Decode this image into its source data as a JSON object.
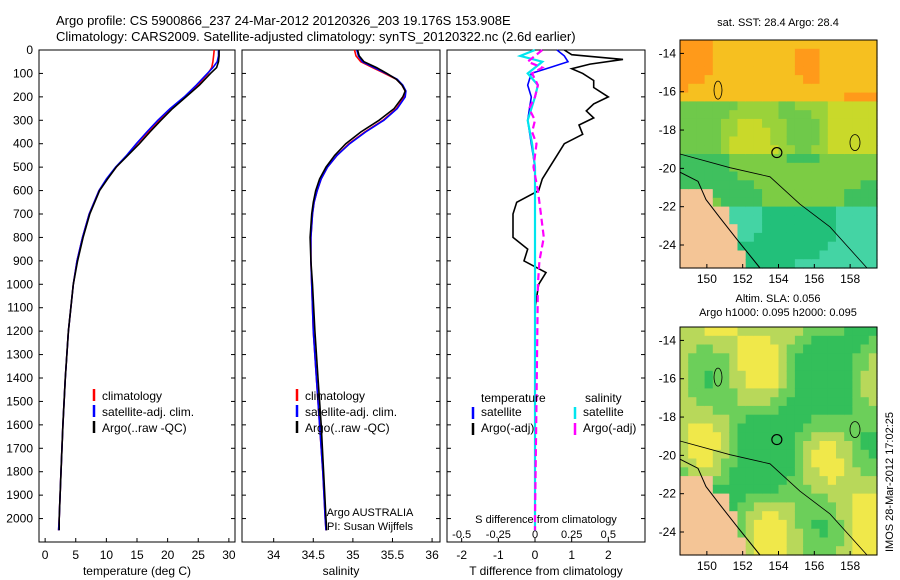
{
  "header": {
    "line1": "Argo profile: CS 5900866_237 24-Mar-2012 20120326_203 19.176S 153.908E",
    "line2": "Climatology: CARS2009. Satellite-adjusted climatology: synTS_20120322.nc (2.6d earlier)",
    "timestamp": "IMOS 28-Mar-2012 17:02:25"
  },
  "colors": {
    "climatology": "#ff0000",
    "satellite": "#0000ff",
    "argo": "#000000",
    "sal_satellite": "#00e5ee",
    "sal_argo": "#ff00ff",
    "land": "#f4c596"
  },
  "chart_data": [
    {
      "type": "line",
      "id": "temperature",
      "xlabel": "temperature (deg C)",
      "ylabel": "",
      "xlim": [
        -1,
        31
      ],
      "ylim": [
        2100,
        0
      ],
      "xticks": [
        0,
        5,
        10,
        15,
        20,
        25,
        30
      ],
      "yticks": [
        0,
        100,
        200,
        300,
        400,
        500,
        600,
        700,
        800,
        900,
        1000,
        1100,
        1200,
        1300,
        1400,
        1500,
        1600,
        1700,
        1800,
        1900,
        2000
      ],
      "legend": [
        "climatology",
        "satellite-adj. clim.",
        "Argo(..raw -QC)"
      ],
      "depth": [
        0,
        25,
        50,
        75,
        100,
        150,
        200,
        250,
        300,
        350,
        400,
        450,
        500,
        550,
        600,
        700,
        800,
        900,
        1000,
        1200,
        1400,
        1600,
        1800,
        2000,
        2050
      ],
      "series": [
        {
          "name": "climatology",
          "color": "#ff0000",
          "values": [
            27.6,
            27.5,
            27.4,
            27.2,
            26.6,
            24.9,
            22.9,
            20.7,
            18.6,
            16.8,
            15.0,
            13.4,
            11.6,
            10.1,
            8.8,
            7.2,
            6.1,
            5.2,
            4.6,
            3.8,
            3.3,
            2.9,
            2.6,
            2.3,
            2.2
          ]
        },
        {
          "name": "satellite-adj. clim.",
          "color": "#0000ff",
          "values": [
            28.3,
            28.3,
            28.1,
            27.4,
            26.5,
            24.7,
            22.7,
            20.4,
            18.4,
            16.6,
            14.9,
            13.3,
            11.5,
            10.0,
            8.8,
            7.2,
            6.1,
            5.2,
            4.6,
            3.8,
            3.3,
            2.9,
            2.6,
            2.3,
            2.2
          ]
        },
        {
          "name": "Argo(..raw -QC)",
          "color": "#000000",
          "values": [
            28.4,
            28.4,
            28.3,
            28.0,
            27.0,
            25.2,
            23.0,
            20.8,
            18.9,
            17.1,
            15.4,
            13.5,
            11.6,
            10.2,
            8.9,
            7.3,
            6.2,
            5.3,
            4.6,
            3.8,
            3.3,
            2.9,
            2.6,
            2.3,
            2.3
          ]
        }
      ]
    },
    {
      "type": "line",
      "id": "salinity",
      "xlabel": "salinity",
      "xlim": [
        33.6,
        36.1
      ],
      "ylim": [
        2100,
        0
      ],
      "xticks": [
        34,
        34.5,
        35,
        35.5,
        36
      ],
      "legend": [
        "climatology",
        "satellite-adj. clim.",
        "Argo(..raw -QC)"
      ],
      "annotation": [
        "Argo AUSTRALIA",
        "PI: Susan Wijffels"
      ],
      "depth": [
        0,
        25,
        50,
        75,
        100,
        125,
        150,
        175,
        200,
        250,
        300,
        350,
        400,
        450,
        500,
        550,
        600,
        650,
        700,
        800,
        900,
        1000,
        1200,
        1400,
        1600,
        1800,
        2000,
        2050
      ],
      "series": [
        {
          "name": "climatology",
          "color": "#ff0000",
          "values": [
            35.02,
            35.04,
            35.1,
            35.25,
            35.4,
            35.55,
            35.62,
            35.66,
            35.65,
            35.55,
            35.38,
            35.15,
            34.95,
            34.8,
            34.68,
            34.6,
            34.55,
            34.51,
            34.49,
            34.47,
            34.47,
            34.48,
            34.5,
            34.54,
            34.58,
            34.62,
            34.65,
            34.66
          ]
        },
        {
          "name": "satellite-adj. clim.",
          "color": "#0000ff",
          "values": [
            35.05,
            35.07,
            35.12,
            35.27,
            35.42,
            35.56,
            35.63,
            35.67,
            35.66,
            35.56,
            35.39,
            35.16,
            34.96,
            34.8,
            34.68,
            34.6,
            34.55,
            34.51,
            34.49,
            34.47,
            34.47,
            34.48,
            34.5,
            34.54,
            34.58,
            34.62,
            34.65,
            34.66
          ]
        },
        {
          "name": "Argo(..raw -QC)",
          "color": "#000000",
          "values": [
            35.06,
            35.08,
            35.14,
            35.3,
            35.43,
            35.55,
            35.62,
            35.66,
            35.63,
            35.52,
            35.33,
            35.1,
            34.91,
            34.77,
            34.66,
            34.58,
            34.53,
            34.5,
            34.48,
            34.46,
            34.47,
            34.49,
            34.52,
            34.56,
            34.6,
            34.63,
            34.66,
            34.67
          ]
        }
      ]
    },
    {
      "type": "line",
      "id": "differences",
      "xlabel": "T difference from climatology",
      "xlabel_top": "S difference from climatology",
      "xlim": [
        -2.4,
        3.0
      ],
      "ylim": [
        2100,
        0
      ],
      "xticks_T": [
        -2,
        -1,
        0,
        1,
        2
      ],
      "xticks_S": [
        -0.5,
        -0.25,
        0,
        0.25,
        0.5
      ],
      "legend_temperature": {
        "title": "temperature",
        "items": [
          "satellite",
          "Argo(-adj)"
        ]
      },
      "legend_salinity": {
        "title": "salinity",
        "items": [
          "satellite",
          "Argo(-adj)"
        ]
      },
      "series": [
        {
          "name": "T satellite",
          "color": "#0000ff",
          "depth": [
            0,
            25,
            50,
            75,
            100,
            150,
            200,
            300,
            400,
            500,
            600,
            700,
            800,
            1000,
            1500,
            2000,
            2050
          ],
          "values": [
            0.6,
            0.8,
            0.9,
            0.4,
            -0.1,
            -0.2,
            -0.1,
            -0.2,
            -0.1,
            0,
            0,
            0,
            0,
            0,
            0,
            0,
            0
          ]
        },
        {
          "name": "T Argo(-adj)",
          "color": "#000000",
          "depth": [
            0,
            20,
            40,
            60,
            80,
            100,
            130,
            160,
            200,
            230,
            260,
            290,
            320,
            360,
            400,
            450,
            500,
            550,
            600,
            650,
            700,
            800,
            850,
            900,
            950,
            1000,
            1100,
            1500,
            2000,
            2050
          ],
          "values": [
            0.8,
            1.0,
            2.4,
            1.5,
            1.0,
            1.3,
            1.6,
            1.6,
            2.0,
            1.6,
            1.4,
            1.6,
            1.2,
            1.3,
            0.8,
            0.6,
            0.4,
            0.2,
            0.1,
            -0.5,
            -0.6,
            -0.6,
            -0.2,
            -0.3,
            0.3,
            0.1,
            0,
            0,
            0,
            0
          ]
        },
        {
          "name": "S satellite",
          "color": "#00e5ee",
          "depth": [
            0,
            25,
            50,
            75,
            100,
            150,
            200,
            300,
            400,
            500,
            600,
            700,
            800,
            1000,
            1500,
            2000,
            2050
          ],
          "values": [
            0.0,
            -0.1,
            0.05,
            0.0,
            -0.05,
            0.02,
            0.0,
            -0.05,
            -0.02,
            0,
            0,
            0,
            0,
            0,
            0,
            0,
            0
          ]
        },
        {
          "name": "S Argo(-adj)",
          "color": "#ff00ff",
          "depth": [
            0,
            25,
            50,
            75,
            100,
            150,
            200,
            250,
            300,
            350,
            400,
            450,
            500,
            600,
            700,
            800,
            900,
            1000,
            1500,
            2000,
            2050
          ],
          "values": [
            0.05,
            0.0,
            -0.05,
            0.05,
            -0.02,
            0.02,
            0.0,
            -0.04,
            0.0,
            -0.02,
            0.01,
            0.0,
            -0.01,
            0.02,
            0.04,
            0.06,
            0.03,
            0.02,
            0.01,
            0,
            0
          ]
        }
      ]
    },
    {
      "type": "heatmap",
      "id": "sst_map",
      "title": "sat. SST: 28.4 Argo: 28.4",
      "xlim": [
        148.5,
        159.5
      ],
      "ylim": [
        -25.2,
        -13.3
      ],
      "xticks": [
        150,
        152,
        154,
        156,
        158
      ],
      "yticks": [
        -14,
        -16,
        -18,
        -20,
        -22,
        -24
      ]
    },
    {
      "type": "heatmap",
      "id": "sla_map",
      "title": "Altim. SLA: 0.056",
      "subtitle": "Argo h1000: 0.095 h2000: 0.095",
      "xlim": [
        148.5,
        159.5
      ],
      "ylim": [
        -25.2,
        -13.3
      ],
      "xticks": [
        150,
        152,
        154,
        156,
        158
      ],
      "yticks": [
        -14,
        -16,
        -18,
        -20,
        -22,
        -24
      ]
    }
  ]
}
